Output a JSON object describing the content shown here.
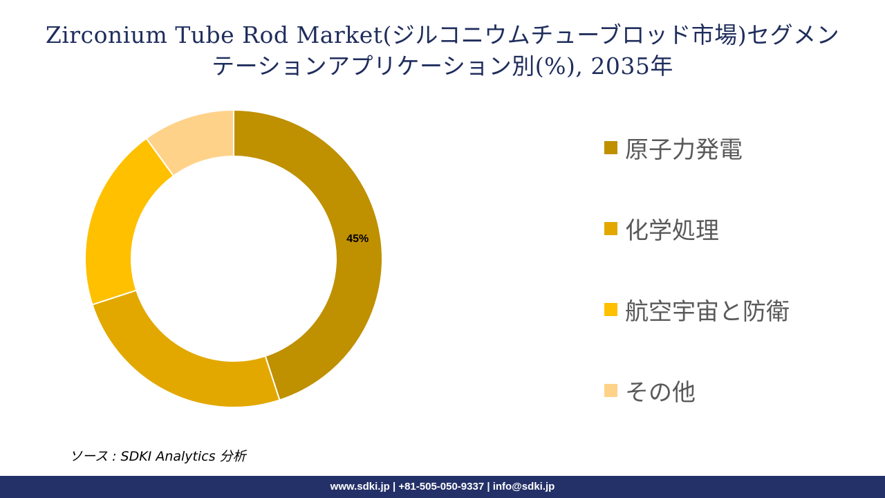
{
  "title": {
    "line1": "Zirconium Tube Rod Market(ジルコニウムチューブロッド市場)セグメン",
    "line2": "テーションアプリケーション別(%), 2035年"
  },
  "chart_data": {
    "type": "pie",
    "donut": true,
    "categories": [
      "原子力発電",
      "化学処理",
      "航空宇宙と防衛",
      "その他"
    ],
    "values": [
      45,
      25,
      20,
      10
    ],
    "data_labels": [
      "45%",
      "",
      "",
      ""
    ],
    "colors": [
      "#bf9000",
      "#e2a800",
      "#ffc000",
      "#ffd28a"
    ],
    "legend_position": "right"
  },
  "legend": {
    "items": [
      {
        "label": "原子力発電",
        "color": "#bf9000"
      },
      {
        "label": "化学処理",
        "color": "#e2a800"
      },
      {
        "label": "航空宇宙と防衛",
        "color": "#ffc000"
      },
      {
        "label": "その他",
        "color": "#ffd28a"
      }
    ]
  },
  "source": "ソース : SDKI Analytics 分析",
  "footer": "www.sdki.jp | +81-505-050-9337 | info@sdki.jp"
}
